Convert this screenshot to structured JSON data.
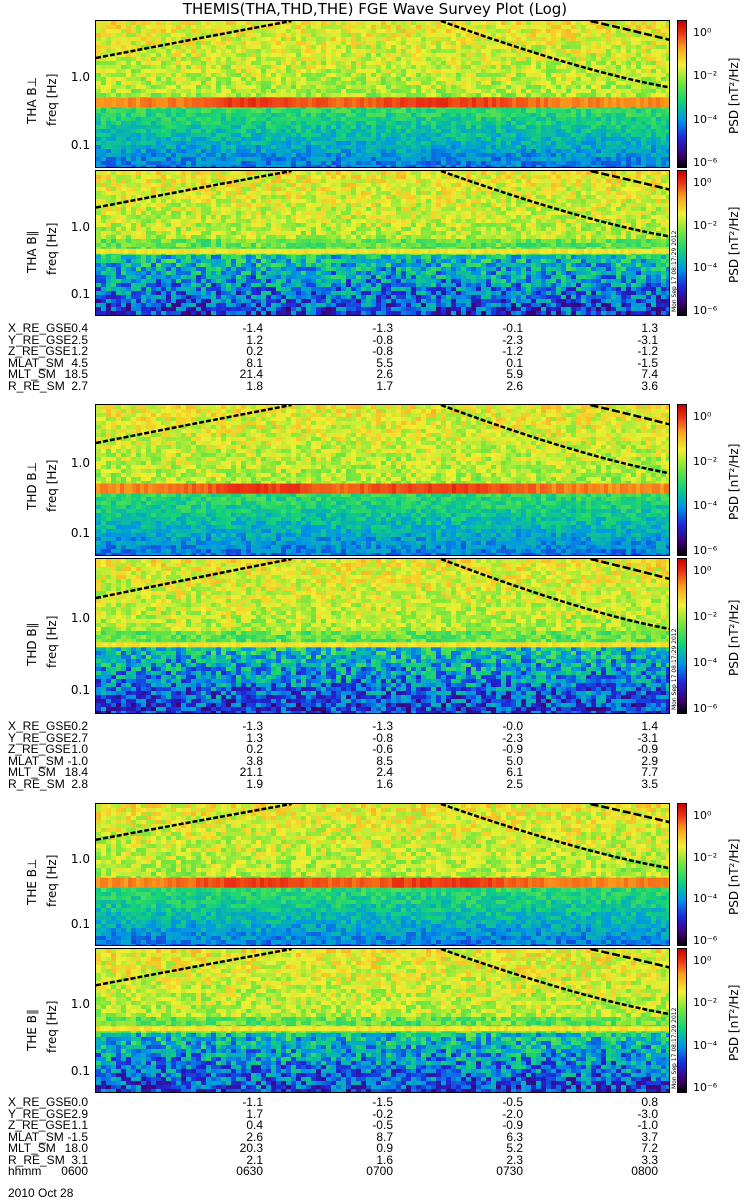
{
  "title": "THEMIS(THA,THD,THE) FGE Wave Survey Plot (Log)",
  "colors": {
    "low": "#000000",
    "mid_low": "#1f6dff",
    "mid": "#2bd66b",
    "mid_high": "#f3ea37",
    "high": "#e6301e"
  },
  "panels": [
    {
      "probe": "THA",
      "component": "B⊥",
      "ylabel": "THA B⊥",
      "yunit": "freq [Hz]",
      "stamp": ""
    },
    {
      "probe": "THA",
      "component": "B∥",
      "ylabel": "THA B∥",
      "yunit": "freq [Hz]",
      "stamp": "Mon Sep 17 08:17:29 2012"
    },
    {
      "probe": "THD",
      "component": "B⊥",
      "ylabel": "THD B⊥",
      "yunit": "freq [Hz]",
      "stamp": ""
    },
    {
      "probe": "THD",
      "component": "B∥",
      "ylabel": "THD B∥",
      "yunit": "freq [Hz]",
      "stamp": "Mon Sep 17 08:17:29 2012"
    },
    {
      "probe": "THE",
      "component": "B⊥",
      "ylabel": "THE B⊥",
      "yunit": "freq [Hz]",
      "stamp": ""
    },
    {
      "probe": "THE",
      "component": "B∥",
      "ylabel": "THE B∥",
      "yunit": "freq [Hz]",
      "stamp": "Mon Sep 17 08:17:29 2012"
    }
  ],
  "yticks": [
    "1.0",
    "0.1"
  ],
  "colorbar": {
    "label": "PSD [nT²/Hz]",
    "ticks": [
      "10⁰",
      "10⁻²",
      "10⁻⁴",
      "10⁻⁶"
    ]
  },
  "ephemeris": [
    {
      "rows": [
        {
          "name": "X_RE_GSE",
          "values": [
            "-0.4",
            "-1.4",
            "-1.3",
            "-0.1",
            "1.3"
          ]
        },
        {
          "name": "Y_RE_GSE",
          "values": [
            "2.5",
            "1.2",
            "-0.8",
            "-2.3",
            "-3.1"
          ]
        },
        {
          "name": "Z_RE_GSE",
          "values": [
            "1.2",
            "0.2",
            "-0.8",
            "-1.2",
            "-1.2"
          ]
        },
        {
          "name": "MLAT_SM",
          "values": [
            "4.5",
            "8.1",
            "5.5",
            "0.1",
            "-1.5"
          ]
        },
        {
          "name": "MLT_SM",
          "values": [
            "18.5",
            "21.4",
            "2.6",
            "5.9",
            "7.4"
          ]
        },
        {
          "name": "R_RE_SM",
          "values": [
            "2.7",
            "1.8",
            "1.7",
            "2.6",
            "3.6"
          ]
        }
      ]
    },
    {
      "rows": [
        {
          "name": "X_RE_GSE",
          "values": [
            "-0.2",
            "-1.3",
            "-1.3",
            "-0.0",
            "1.4"
          ]
        },
        {
          "name": "Y_RE_GSE",
          "values": [
            "2.7",
            "1.3",
            "-0.8",
            "-2.3",
            "-3.1"
          ]
        },
        {
          "name": "Z_RE_GSE",
          "values": [
            "1.0",
            "0.2",
            "-0.6",
            "-0.9",
            "-0.9"
          ]
        },
        {
          "name": "MLAT_SM",
          "values": [
            "-1.0",
            "3.8",
            "8.5",
            "5.0",
            "2.9"
          ]
        },
        {
          "name": "MLT_SM",
          "values": [
            "18.4",
            "21.1",
            "2.4",
            "6.1",
            "7.7"
          ]
        },
        {
          "name": "R_RE_SM",
          "values": [
            "2.8",
            "1.9",
            "1.6",
            "2.5",
            "3.5"
          ]
        }
      ]
    },
    {
      "rows": [
        {
          "name": "X_RE_GSE",
          "values": [
            "-0.0",
            "-1.1",
            "-1.5",
            "-0.5",
            "0.8"
          ]
        },
        {
          "name": "Y_RE_GSE",
          "values": [
            "2.9",
            "1.7",
            "-0.2",
            "-2.0",
            "-3.0"
          ]
        },
        {
          "name": "Z_RE_GSE",
          "values": [
            "1.1",
            "0.4",
            "-0.5",
            "-0.9",
            "-1.0"
          ]
        },
        {
          "name": "MLAT_SM",
          "values": [
            "-1.5",
            "2.6",
            "8.7",
            "6.3",
            "3.7"
          ]
        },
        {
          "name": "MLT_SM",
          "values": [
            "18.0",
            "20.3",
            "0.9",
            "5.2",
            "7.2"
          ]
        },
        {
          "name": "R_RE_SM",
          "values": [
            "3.1",
            "2.1",
            "1.6",
            "2.3",
            "3.3"
          ]
        },
        {
          "name": "hhmm",
          "values": [
            "0600",
            "0630",
            "0700",
            "0730",
            "0800"
          ]
        }
      ]
    }
  ],
  "date": "2010 Oct 28",
  "chart_data": {
    "type": "heatmap",
    "title": "THEMIS(THA,THD,THE) FGE Wave Survey Plot (Log)",
    "xlabel": "hhmm",
    "ylabel": "freq [Hz]",
    "x_ticks": [
      "0600",
      "0630",
      "0700",
      "0730",
      "0800"
    ],
    "y_scale": "log",
    "y_ticks": [
      1.0,
      0.1
    ],
    "colorbar": {
      "label": "PSD [nT²/Hz]",
      "scale": "log",
      "ticks": [
        "10⁰",
        "10⁻²",
        "10⁻⁴",
        "10⁻⁶"
      ]
    },
    "panels": [
      "THA B⊥",
      "THA B∥",
      "THD B⊥",
      "THD B∥",
      "THE B⊥",
      "THE B∥"
    ]
  }
}
